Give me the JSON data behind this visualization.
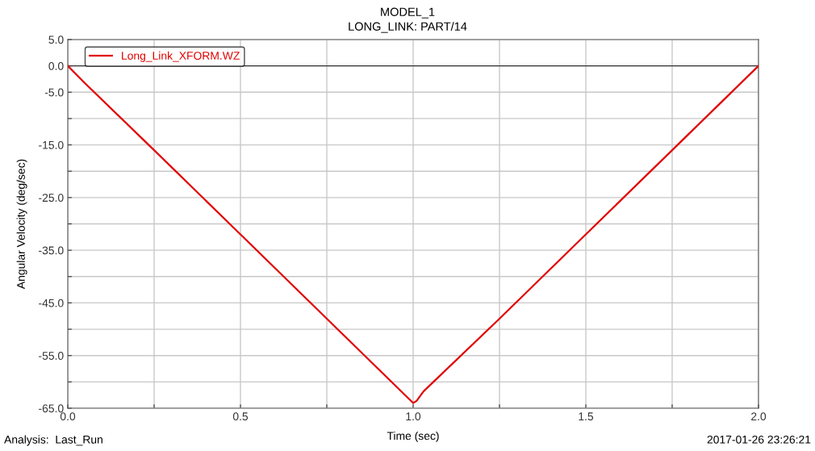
{
  "chart_data": {
    "type": "line",
    "title": "MODEL_1",
    "subtitle": "LONG_LINK: PART/14",
    "xlabel": "Time (sec)",
    "ylabel": "Angular Velocity (deg/sec)",
    "x": [
      0.0,
      0.05,
      0.25,
      0.5,
      0.75,
      1.0,
      1.01,
      1.03,
      1.25,
      1.5,
      1.75,
      2.0
    ],
    "series": [
      {
        "name": "Long_Link_XFORM.WZ",
        "color": "#e00000",
        "values": [
          0.0,
          -3.3,
          -16.0,
          -32.0,
          -48.0,
          -64.0,
          -63.6,
          -61.8,
          -48.0,
          -32.0,
          -16.0,
          0.0
        ]
      }
    ],
    "xlim": [
      0.0,
      2.0
    ],
    "xticks": [
      {
        "value": 0.0,
        "label": "0.0"
      },
      {
        "value": 0.25,
        "label": null
      },
      {
        "value": 0.5,
        "label": "0.5"
      },
      {
        "value": 0.75,
        "label": null
      },
      {
        "value": 1.0,
        "label": "1.0"
      },
      {
        "value": 1.25,
        "label": null
      },
      {
        "value": 1.5,
        "label": "1.5"
      },
      {
        "value": 1.75,
        "label": null
      },
      {
        "value": 2.0,
        "label": "2.0"
      }
    ],
    "ylim": [
      -65.0,
      5.0
    ],
    "yticks": [
      {
        "value": 5.0,
        "label": "5.0"
      },
      {
        "value": 0.0,
        "label": "0.0"
      },
      {
        "value": -5.0,
        "label": "-5.0"
      },
      {
        "value": -10.0,
        "label": null
      },
      {
        "value": -15.0,
        "label": "-15.0"
      },
      {
        "value": -20.0,
        "label": null
      },
      {
        "value": -25.0,
        "label": "-25.0"
      },
      {
        "value": -30.0,
        "label": null
      },
      {
        "value": -35.0,
        "label": "-35.0"
      },
      {
        "value": -40.0,
        "label": null
      },
      {
        "value": -45.0,
        "label": "-45.0"
      },
      {
        "value": -50.0,
        "label": null
      },
      {
        "value": -55.0,
        "label": "-55.0"
      },
      {
        "value": -60.0,
        "label": null
      },
      {
        "value": -65.0,
        "label": "-65.0"
      }
    ],
    "ref_lines": [
      {
        "axis": "y",
        "value": 0.0,
        "color": "#333333"
      }
    ],
    "grid": true,
    "legend": "top left",
    "line_style": "solid",
    "marker": "none",
    "annotations": [
      "Analysis:  Last_Run",
      "2017-01-26 23:26:21"
    ]
  }
}
